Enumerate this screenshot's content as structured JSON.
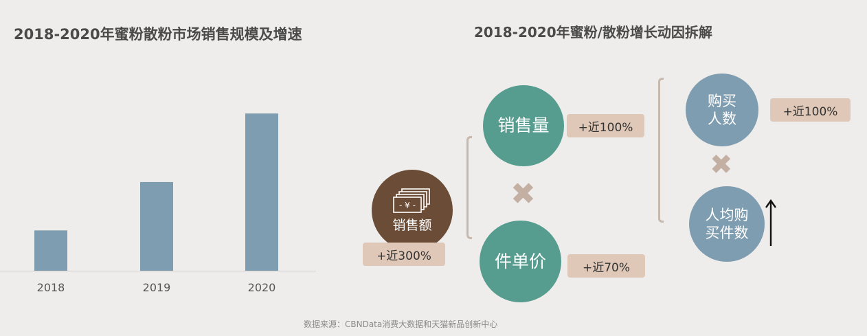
{
  "left_title": "2018-2020年蜜粉散粉市场销售规模及增速",
  "right_title": "2018-2020年蜜粉/散粉增长动因拆解",
  "chart_data": {
    "type": "bar",
    "categories": [
      "2018",
      "2019",
      "2020"
    ],
    "values": [
      1.0,
      2.2,
      3.9
    ],
    "title": "2018-2020年蜜粉散粉市场销售规模及增速",
    "xlabel": "",
    "ylabel": "",
    "ylim": [
      0,
      4.5
    ],
    "grid": false,
    "color": "#7f9db1"
  },
  "breakdown": {
    "sales": {
      "label": "销售额",
      "change": "+近300%",
      "icon": "yen-banknote-icon"
    },
    "volume": {
      "label": "销售量",
      "change": "+近100%"
    },
    "unit_price": {
      "label": "件单价",
      "change": "+近70%"
    },
    "buyers": {
      "label_line1": "购买",
      "label_line2": "人数",
      "change": "+近100%"
    },
    "per_capita": {
      "label_line1": "人均购",
      "label_line2": "买件数",
      "trend": "up-arrow-icon"
    },
    "operator": "✖"
  },
  "source": "数据来源：CBNData消费大数据和天猫新品创新中心",
  "colors": {
    "background": "#eeedeb",
    "bar": "#7f9db1",
    "sales_circle": "#6b4c36",
    "teal_circle": "#569d90",
    "blue_circle": "#7f9db1",
    "badge": "#dfc8b7",
    "operator": "#c3b0a3"
  }
}
